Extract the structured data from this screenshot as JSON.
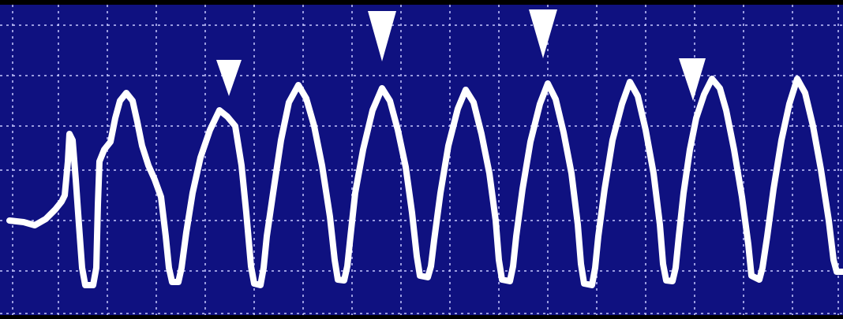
{
  "image": {
    "subject": "ecg-rhythm-strip-monitor-tracing",
    "colors": {
      "border": "#000000",
      "screen_background": "#0f1180",
      "grid_line": "#c7c9ff",
      "trace": "#ffffff",
      "marker": "#ffffff"
    },
    "icons": {
      "marker": "downward-triangle-marker-icon"
    },
    "marker_count": 4
  }
}
